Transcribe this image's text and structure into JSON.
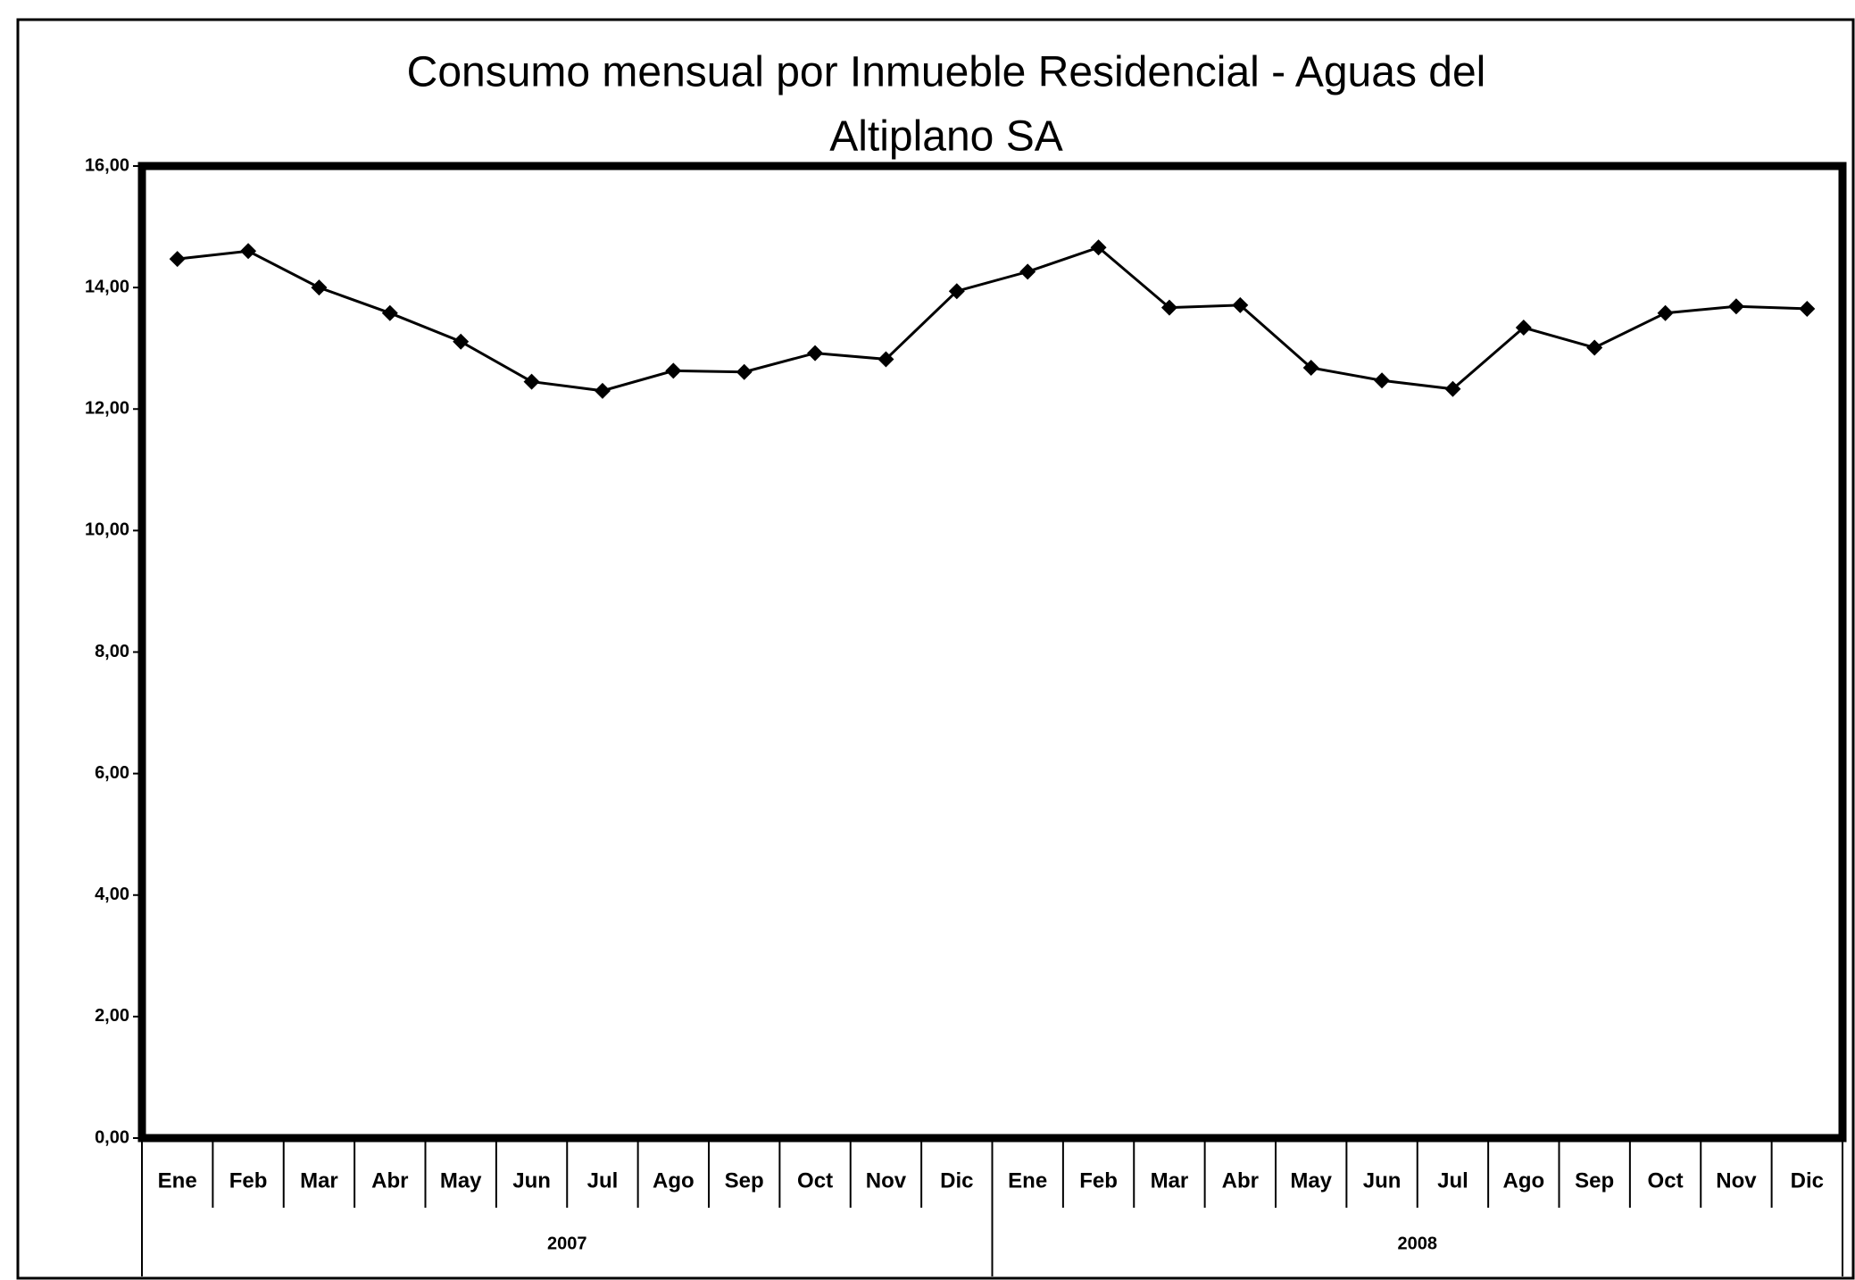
{
  "chart_data": {
    "type": "line",
    "title": [
      "Consumo mensual por Inmueble Residencial - Aguas del",
      "Altiplano SA"
    ],
    "categories": [
      "Ene",
      "Feb",
      "Mar",
      "Abr",
      "May",
      "Jun",
      "Jul",
      "Ago",
      "Sep",
      "Oct",
      "Nov",
      "Dic",
      "Ene",
      "Feb",
      "Mar",
      "Abr",
      "May",
      "Jun",
      "Jul",
      "Ago",
      "Sep",
      "Oct",
      "Nov",
      "Dic"
    ],
    "groups": [
      {
        "label": "2007",
        "span": 12
      },
      {
        "label": "2008",
        "span": 12
      }
    ],
    "series": [
      {
        "color": "#000000",
        "values": [
          14.47,
          14.6,
          14.0,
          13.58,
          13.11,
          12.45,
          12.3,
          12.63,
          12.61,
          12.92,
          12.82,
          13.94,
          14.26,
          14.66,
          13.67,
          13.71,
          12.68,
          12.47,
          12.33,
          13.34,
          13.01,
          13.58,
          13.69,
          13.65
        ]
      }
    ],
    "ylim": [
      0,
      16
    ],
    "yticks": [
      {
        "value": 0,
        "label": "0,00"
      },
      {
        "value": 2,
        "label": "2,00"
      },
      {
        "value": 4,
        "label": "4,00"
      },
      {
        "value": 6,
        "label": "6,00"
      },
      {
        "value": 8,
        "label": "8,00"
      },
      {
        "value": 10,
        "label": "10,00"
      },
      {
        "value": 12,
        "label": "12,00"
      },
      {
        "value": 14,
        "label": "14,00"
      },
      {
        "value": 16,
        "label": "16,00"
      }
    ],
    "grid": false
  }
}
